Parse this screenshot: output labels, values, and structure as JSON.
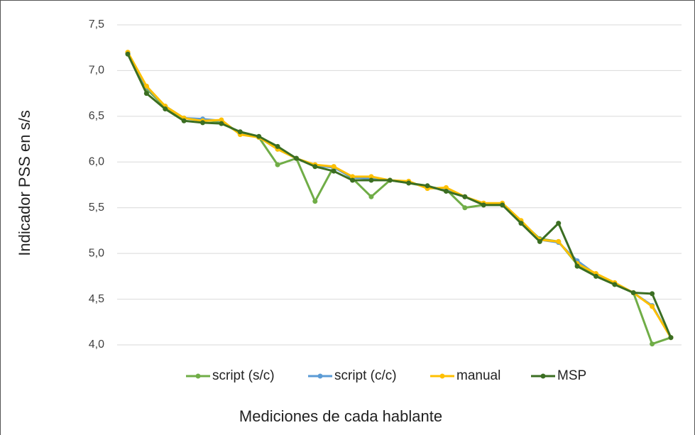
{
  "chart_data": {
    "type": "line",
    "y_label": "Indicador PSS en s/s",
    "x_label": "Mediciones de cada hablante",
    "categories": [
      null,
      null,
      null,
      null,
      null,
      null,
      null,
      null,
      null,
      null,
      null,
      null,
      null,
      null,
      null,
      null,
      null,
      null,
      null,
      null,
      null,
      null,
      null,
      null,
      null,
      null,
      null,
      null,
      null,
      null
    ],
    "ylim": [
      4.0,
      7.5
    ],
    "yticks": [
      {
        "value": 4.0,
        "label": "4,0"
      },
      {
        "value": 4.5,
        "label": "4,5"
      },
      {
        "value": 5.0,
        "label": "5,0"
      },
      {
        "value": 5.5,
        "label": "5,5"
      },
      {
        "value": 6.0,
        "label": "6,0"
      },
      {
        "value": 6.5,
        "label": "6,5"
      },
      {
        "value": 7.0,
        "label": "7,0"
      },
      {
        "value": 7.5,
        "label": "7,5"
      }
    ],
    "grid": true,
    "legend": "bottom",
    "series": [
      {
        "name": "script (s/c)",
        "color": "#70ad47",
        "values": [
          7.19,
          6.8,
          6.6,
          6.48,
          6.46,
          6.44,
          6.31,
          6.27,
          5.97,
          6.04,
          5.57,
          5.95,
          5.82,
          5.62,
          5.8,
          5.77,
          5.73,
          5.7,
          5.5,
          5.53,
          5.53,
          5.35,
          5.16,
          5.13,
          4.88,
          4.77,
          4.67,
          4.57,
          4.01,
          4.08
        ]
      },
      {
        "name": "script (c/c)",
        "color": "#5b9bd5",
        "values": [
          7.19,
          6.82,
          6.61,
          6.48,
          6.47,
          6.45,
          6.31,
          6.27,
          6.14,
          6.04,
          5.96,
          5.94,
          5.83,
          5.82,
          5.8,
          5.78,
          5.72,
          5.7,
          5.62,
          5.54,
          5.54,
          5.35,
          5.15,
          5.12,
          4.92,
          4.77,
          4.67,
          4.57,
          4.43,
          4.08
        ]
      },
      {
        "name": "manual",
        "color": "#ffc000",
        "values": [
          7.2,
          6.83,
          6.61,
          6.48,
          6.45,
          6.46,
          6.3,
          6.27,
          6.14,
          6.04,
          5.97,
          5.95,
          5.84,
          5.84,
          5.8,
          5.79,
          5.71,
          5.72,
          5.62,
          5.55,
          5.55,
          5.36,
          5.15,
          5.13,
          4.89,
          4.78,
          4.68,
          4.57,
          4.42,
          4.08
        ]
      },
      {
        "name": "MSP",
        "color": "#3b6e22",
        "values": [
          7.18,
          6.75,
          6.58,
          6.45,
          6.43,
          6.42,
          6.33,
          6.28,
          6.17,
          6.04,
          5.95,
          5.9,
          5.8,
          5.8,
          5.8,
          5.77,
          5.74,
          5.68,
          5.62,
          5.53,
          5.53,
          5.33,
          5.13,
          5.33,
          4.86,
          4.75,
          4.66,
          4.57,
          4.56,
          4.08
        ]
      }
    ]
  }
}
